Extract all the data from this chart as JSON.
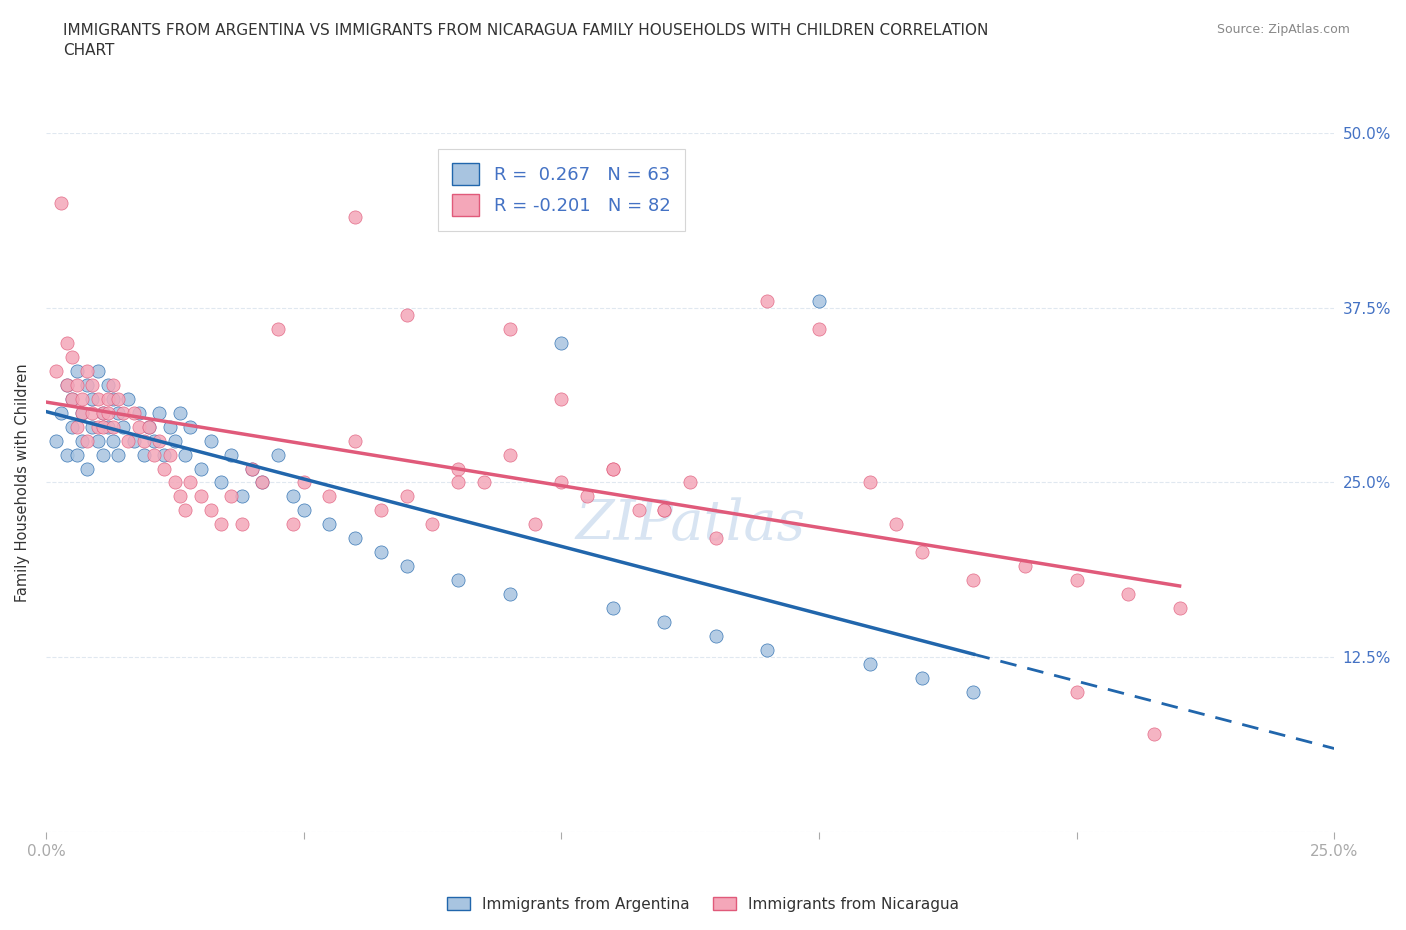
{
  "title": "IMMIGRANTS FROM ARGENTINA VS IMMIGRANTS FROM NICARAGUA FAMILY HOUSEHOLDS WITH CHILDREN CORRELATION\nCHART",
  "source": "Source: ZipAtlas.com",
  "ylabel": "Family Households with Children",
  "legend_label_1": "Immigrants from Argentina",
  "legend_label_2": "Immigrants from Nicaragua",
  "R1": 0.267,
  "N1": 63,
  "R2": -0.201,
  "N2": 82,
  "color_argentina": "#a8c4e0",
  "color_nicaragua": "#f4a7b9",
  "line_color_argentina": "#2166ac",
  "line_color_nicaragua": "#e05a7a",
  "xlim": [
    0.0,
    0.25
  ],
  "ylim": [
    0.0,
    0.5
  ],
  "xticks": [
    0.0,
    0.05,
    0.1,
    0.15,
    0.2,
    0.25
  ],
  "yticks": [
    0.0,
    0.125,
    0.25,
    0.375,
    0.5
  ],
  "xtick_labels": [
    "0.0%",
    "",
    "",
    "",
    "",
    "25.0%"
  ],
  "ytick_labels": [
    "",
    "12.5%",
    "25.0%",
    "37.5%",
    "50.0%"
  ],
  "argentina_x": [
    0.002,
    0.003,
    0.004,
    0.004,
    0.005,
    0.005,
    0.006,
    0.006,
    0.007,
    0.007,
    0.008,
    0.008,
    0.009,
    0.009,
    0.01,
    0.01,
    0.011,
    0.011,
    0.012,
    0.012,
    0.013,
    0.013,
    0.014,
    0.014,
    0.015,
    0.016,
    0.017,
    0.018,
    0.019,
    0.02,
    0.021,
    0.022,
    0.023,
    0.024,
    0.025,
    0.026,
    0.027,
    0.028,
    0.03,
    0.032,
    0.034,
    0.036,
    0.038,
    0.04,
    0.042,
    0.045,
    0.048,
    0.05,
    0.055,
    0.06,
    0.065,
    0.07,
    0.08,
    0.09,
    0.1,
    0.11,
    0.12,
    0.13,
    0.14,
    0.15,
    0.16,
    0.17,
    0.18
  ],
  "argentina_y": [
    0.28,
    0.3,
    0.27,
    0.32,
    0.29,
    0.31,
    0.33,
    0.27,
    0.3,
    0.28,
    0.32,
    0.26,
    0.29,
    0.31,
    0.28,
    0.33,
    0.27,
    0.3,
    0.29,
    0.32,
    0.28,
    0.31,
    0.27,
    0.3,
    0.29,
    0.31,
    0.28,
    0.3,
    0.27,
    0.29,
    0.28,
    0.3,
    0.27,
    0.29,
    0.28,
    0.3,
    0.27,
    0.29,
    0.26,
    0.28,
    0.25,
    0.27,
    0.24,
    0.26,
    0.25,
    0.27,
    0.24,
    0.23,
    0.22,
    0.21,
    0.2,
    0.19,
    0.18,
    0.17,
    0.35,
    0.16,
    0.15,
    0.14,
    0.13,
    0.38,
    0.12,
    0.11,
    0.1
  ],
  "nicaragua_x": [
    0.002,
    0.003,
    0.004,
    0.004,
    0.005,
    0.005,
    0.006,
    0.006,
    0.007,
    0.007,
    0.008,
    0.008,
    0.009,
    0.009,
    0.01,
    0.01,
    0.011,
    0.011,
    0.012,
    0.012,
    0.013,
    0.013,
    0.014,
    0.015,
    0.016,
    0.017,
    0.018,
    0.019,
    0.02,
    0.021,
    0.022,
    0.023,
    0.024,
    0.025,
    0.026,
    0.027,
    0.028,
    0.03,
    0.032,
    0.034,
    0.036,
    0.038,
    0.04,
    0.042,
    0.045,
    0.048,
    0.05,
    0.055,
    0.06,
    0.065,
    0.07,
    0.075,
    0.08,
    0.085,
    0.09,
    0.095,
    0.1,
    0.105,
    0.11,
    0.115,
    0.12,
    0.125,
    0.13,
    0.14,
    0.15,
    0.16,
    0.165,
    0.17,
    0.18,
    0.19,
    0.2,
    0.21,
    0.22,
    0.06,
    0.07,
    0.08,
    0.09,
    0.1,
    0.11,
    0.12,
    0.2,
    0.215
  ],
  "nicaragua_y": [
    0.33,
    0.45,
    0.32,
    0.35,
    0.31,
    0.34,
    0.29,
    0.32,
    0.3,
    0.31,
    0.33,
    0.28,
    0.3,
    0.32,
    0.29,
    0.31,
    0.3,
    0.29,
    0.31,
    0.3,
    0.32,
    0.29,
    0.31,
    0.3,
    0.28,
    0.3,
    0.29,
    0.28,
    0.29,
    0.27,
    0.28,
    0.26,
    0.27,
    0.25,
    0.24,
    0.23,
    0.25,
    0.24,
    0.23,
    0.22,
    0.24,
    0.22,
    0.26,
    0.25,
    0.36,
    0.22,
    0.25,
    0.24,
    0.28,
    0.23,
    0.24,
    0.22,
    0.26,
    0.25,
    0.36,
    0.22,
    0.25,
    0.24,
    0.26,
    0.23,
    0.23,
    0.25,
    0.21,
    0.38,
    0.36,
    0.25,
    0.22,
    0.2,
    0.18,
    0.19,
    0.18,
    0.17,
    0.16,
    0.44,
    0.37,
    0.25,
    0.27,
    0.31,
    0.26,
    0.23,
    0.1,
    0.07
  ],
  "watermark": "ZIPatlas",
  "background_color": "#ffffff",
  "grid_color": "#e0e8f0"
}
